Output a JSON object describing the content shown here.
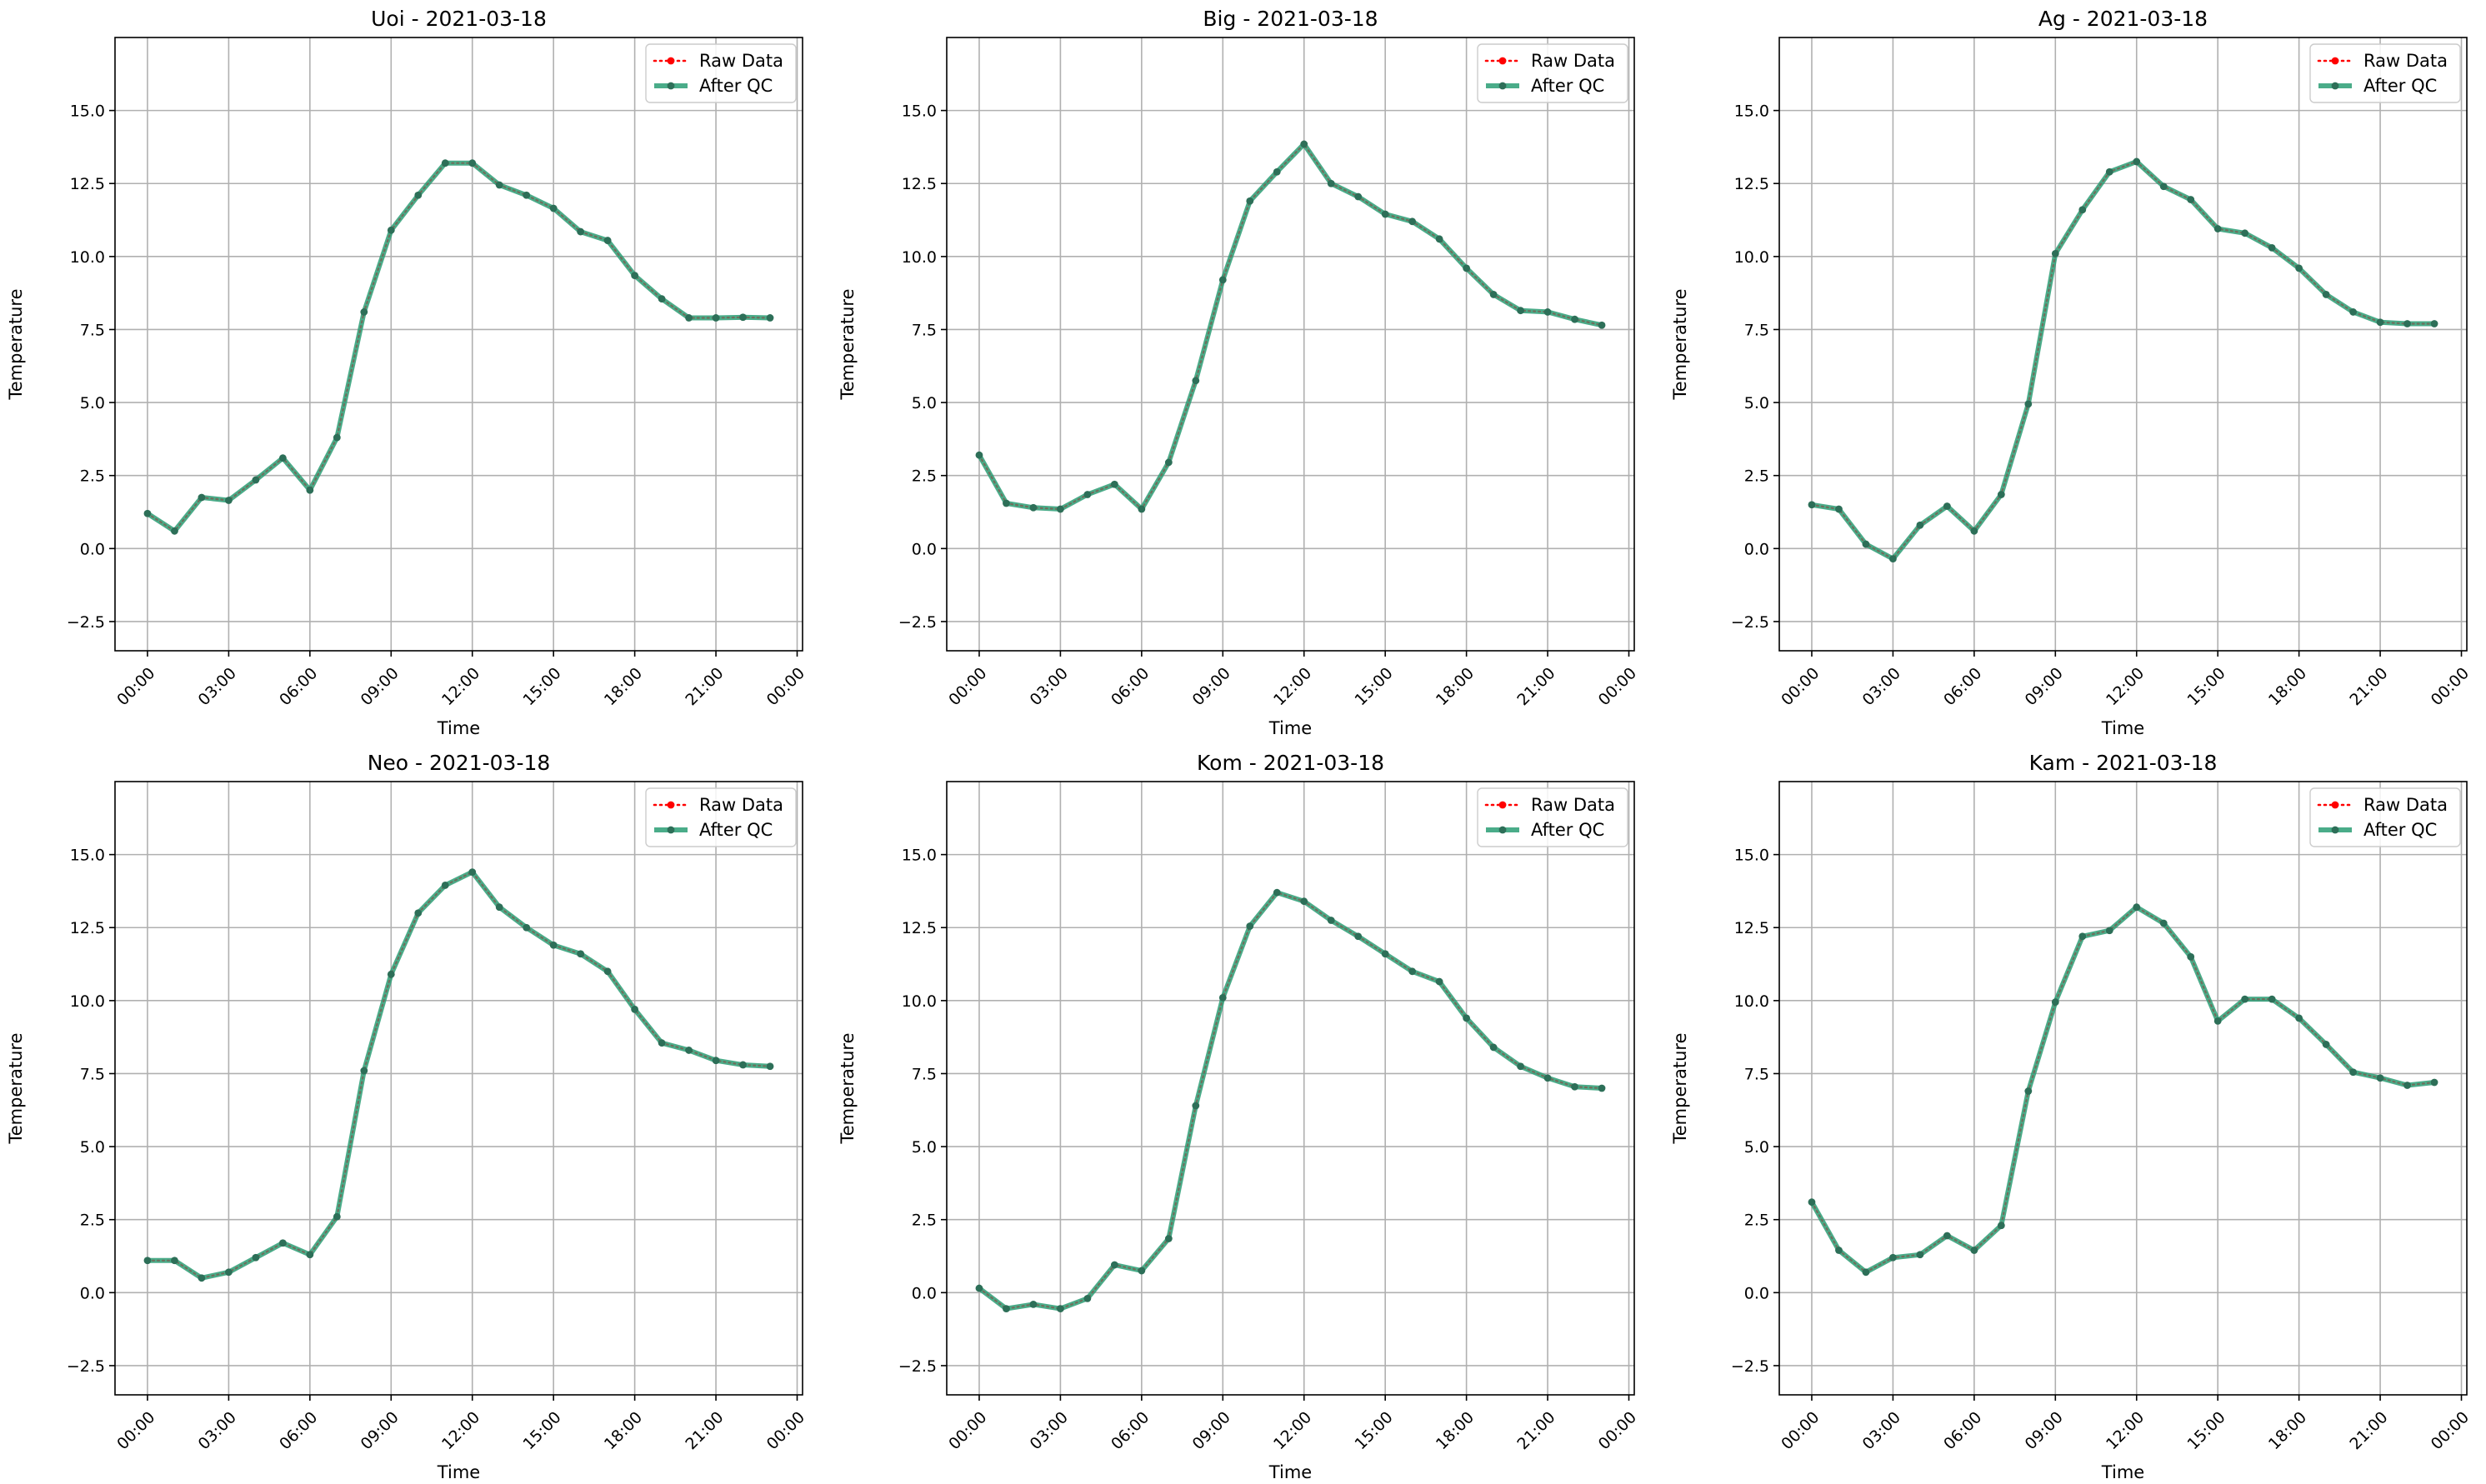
{
  "chart_data": [
    {
      "type": "line",
      "title": "Uoi - 2021-03-18",
      "xlabel": "Time",
      "ylabel": "Temperature",
      "xlim": [
        -1.2,
        24.2
      ],
      "ylim": [
        -3.5,
        17.5
      ],
      "xticks": [
        0,
        3,
        6,
        9,
        12,
        15,
        18,
        21,
        24
      ],
      "xticklabels": [
        "00:00",
        "03:00",
        "06:00",
        "09:00",
        "12:00",
        "15:00",
        "18:00",
        "21:00",
        "00:00"
      ],
      "yticks": [
        -2.5,
        0.0,
        2.5,
        5.0,
        7.5,
        10.0,
        12.5,
        15.0
      ],
      "yticklabels": [
        "−2.5",
        "0.0",
        "2.5",
        "5.0",
        "7.5",
        "10.0",
        "12.5",
        "15.0"
      ],
      "grid": true,
      "legend": "top-right",
      "x": [
        0,
        1,
        2,
        3,
        4,
        5,
        6,
        7,
        8,
        9,
        10,
        11,
        12,
        13,
        14,
        15,
        16,
        17,
        18,
        19,
        20,
        21,
        22,
        23
      ],
      "series": [
        {
          "name": "Raw Data",
          "color": "#ff0000",
          "values": [
            1.2,
            0.6,
            1.75,
            1.65,
            2.35,
            3.1,
            2.0,
            3.8,
            8.1,
            10.9,
            12.1,
            13.2,
            13.2,
            12.45,
            12.1,
            11.65,
            10.85,
            10.55,
            9.35,
            8.55,
            7.9,
            7.9,
            7.92,
            7.9
          ]
        },
        {
          "name": "After QC",
          "color": "#2a9d74",
          "values": [
            1.2,
            0.6,
            1.75,
            1.65,
            2.35,
            3.1,
            2.0,
            3.8,
            8.1,
            10.9,
            12.1,
            13.2,
            13.2,
            12.45,
            12.1,
            11.65,
            10.85,
            10.55,
            9.35,
            8.55,
            7.9,
            7.9,
            7.92,
            7.9
          ]
        }
      ]
    },
    {
      "type": "line",
      "title": "Big - 2021-03-18",
      "xlabel": "Time",
      "ylabel": "Temperature",
      "xlim": [
        -1.2,
        24.2
      ],
      "ylim": [
        -3.5,
        17.5
      ],
      "xticks": [
        0,
        3,
        6,
        9,
        12,
        15,
        18,
        21,
        24
      ],
      "xticklabels": [
        "00:00",
        "03:00",
        "06:00",
        "09:00",
        "12:00",
        "15:00",
        "18:00",
        "21:00",
        "00:00"
      ],
      "yticks": [
        -2.5,
        0.0,
        2.5,
        5.0,
        7.5,
        10.0,
        12.5,
        15.0
      ],
      "yticklabels": [
        "−2.5",
        "0.0",
        "2.5",
        "5.0",
        "7.5",
        "10.0",
        "12.5",
        "15.0"
      ],
      "grid": true,
      "legend": "top-right",
      "x": [
        0,
        1,
        2,
        3,
        4,
        5,
        6,
        7,
        8,
        9,
        10,
        11,
        12,
        13,
        14,
        15,
        16,
        17,
        18,
        19,
        20,
        21,
        22,
        23
      ],
      "series": [
        {
          "name": "Raw Data",
          "color": "#ff0000",
          "values": [
            3.2,
            1.55,
            1.4,
            1.35,
            1.85,
            2.2,
            1.35,
            2.95,
            5.75,
            9.2,
            11.9,
            12.9,
            13.85,
            12.5,
            12.05,
            11.45,
            11.2,
            10.6,
            9.6,
            8.7,
            8.15,
            8.1,
            7.85,
            7.65
          ]
        },
        {
          "name": "After QC",
          "color": "#2a9d74",
          "values": [
            3.2,
            1.55,
            1.4,
            1.35,
            1.85,
            2.2,
            1.35,
            2.95,
            5.75,
            9.2,
            11.9,
            12.9,
            13.85,
            12.5,
            12.05,
            11.45,
            11.2,
            10.6,
            9.6,
            8.7,
            8.15,
            8.1,
            7.85,
            7.65
          ]
        }
      ]
    },
    {
      "type": "line",
      "title": "Ag - 2021-03-18",
      "xlabel": "Time",
      "ylabel": "Temperature",
      "xlim": [
        -1.2,
        24.2
      ],
      "ylim": [
        -3.5,
        17.5
      ],
      "xticks": [
        0,
        3,
        6,
        9,
        12,
        15,
        18,
        21,
        24
      ],
      "xticklabels": [
        "00:00",
        "03:00",
        "06:00",
        "09:00",
        "12:00",
        "15:00",
        "18:00",
        "21:00",
        "00:00"
      ],
      "yticks": [
        -2.5,
        0.0,
        2.5,
        5.0,
        7.5,
        10.0,
        12.5,
        15.0
      ],
      "yticklabels": [
        "−2.5",
        "0.0",
        "2.5",
        "5.0",
        "7.5",
        "10.0",
        "12.5",
        "15.0"
      ],
      "grid": true,
      "legend": "top-right",
      "x": [
        0,
        1,
        2,
        3,
        4,
        5,
        6,
        7,
        8,
        9,
        10,
        11,
        12,
        13,
        14,
        15,
        16,
        17,
        18,
        19,
        20,
        21,
        22,
        23
      ],
      "series": [
        {
          "name": "Raw Data",
          "color": "#ff0000",
          "values": [
            1.5,
            1.35,
            0.15,
            -0.35,
            0.8,
            1.45,
            0.6,
            1.85,
            4.95,
            10.1,
            11.6,
            12.9,
            13.25,
            12.4,
            11.95,
            10.95,
            10.8,
            10.3,
            9.6,
            8.7,
            8.1,
            7.75,
            7.7,
            7.7
          ]
        },
        {
          "name": "After QC",
          "color": "#2a9d74",
          "values": [
            1.5,
            1.35,
            0.15,
            -0.35,
            0.8,
            1.45,
            0.6,
            1.85,
            4.95,
            10.1,
            11.6,
            12.9,
            13.25,
            12.4,
            11.95,
            10.95,
            10.8,
            10.3,
            9.6,
            8.7,
            8.1,
            7.75,
            7.7,
            7.7
          ]
        }
      ]
    },
    {
      "type": "line",
      "title": "Neo - 2021-03-18",
      "xlabel": "Time",
      "ylabel": "Temperature",
      "xlim": [
        -1.2,
        24.2
      ],
      "ylim": [
        -3.5,
        17.5
      ],
      "xticks": [
        0,
        3,
        6,
        9,
        12,
        15,
        18,
        21,
        24
      ],
      "xticklabels": [
        "00:00",
        "03:00",
        "06:00",
        "09:00",
        "12:00",
        "15:00",
        "18:00",
        "21:00",
        "00:00"
      ],
      "yticks": [
        -2.5,
        0.0,
        2.5,
        5.0,
        7.5,
        10.0,
        12.5,
        15.0
      ],
      "yticklabels": [
        "−2.5",
        "0.0",
        "2.5",
        "5.0",
        "7.5",
        "10.0",
        "12.5",
        "15.0"
      ],
      "grid": true,
      "legend": "top-right",
      "x": [
        0,
        1,
        2,
        3,
        4,
        5,
        6,
        7,
        8,
        9,
        10,
        11,
        12,
        13,
        14,
        15,
        16,
        17,
        18,
        19,
        20,
        21,
        22,
        23
      ],
      "series": [
        {
          "name": "Raw Data",
          "color": "#ff0000",
          "values": [
            1.1,
            1.1,
            0.5,
            0.7,
            1.2,
            1.7,
            1.3,
            2.6,
            7.6,
            10.9,
            13.0,
            13.95,
            14.4,
            13.2,
            12.5,
            11.9,
            11.6,
            11.0,
            9.7,
            8.55,
            8.3,
            7.95,
            7.8,
            7.75
          ]
        },
        {
          "name": "After QC",
          "color": "#2a9d74",
          "values": [
            1.1,
            1.1,
            0.5,
            0.7,
            1.2,
            1.7,
            1.3,
            2.6,
            7.6,
            10.9,
            13.0,
            13.95,
            14.4,
            13.2,
            12.5,
            11.9,
            11.6,
            11.0,
            9.7,
            8.55,
            8.3,
            7.95,
            7.8,
            7.75
          ]
        }
      ]
    },
    {
      "type": "line",
      "title": "Kom - 2021-03-18",
      "xlabel": "Time",
      "ylabel": "Temperature",
      "xlim": [
        -1.2,
        24.2
      ],
      "ylim": [
        -3.5,
        17.5
      ],
      "xticks": [
        0,
        3,
        6,
        9,
        12,
        15,
        18,
        21,
        24
      ],
      "xticklabels": [
        "00:00",
        "03:00",
        "06:00",
        "09:00",
        "12:00",
        "15:00",
        "18:00",
        "21:00",
        "00:00"
      ],
      "yticks": [
        -2.5,
        0.0,
        2.5,
        5.0,
        7.5,
        10.0,
        12.5,
        15.0
      ],
      "yticklabels": [
        "−2.5",
        "0.0",
        "2.5",
        "5.0",
        "7.5",
        "10.0",
        "12.5",
        "15.0"
      ],
      "grid": true,
      "legend": "top-right",
      "x": [
        0,
        1,
        2,
        3,
        4,
        5,
        6,
        7,
        8,
        9,
        10,
        11,
        12,
        13,
        14,
        15,
        16,
        17,
        18,
        19,
        20,
        21,
        22,
        23
      ],
      "series": [
        {
          "name": "Raw Data",
          "color": "#ff0000",
          "values": [
            0.15,
            -0.55,
            -0.4,
            -0.55,
            -0.2,
            0.95,
            0.75,
            1.85,
            6.4,
            10.1,
            12.55,
            13.7,
            13.4,
            12.75,
            12.2,
            11.6,
            11.0,
            10.65,
            9.4,
            8.4,
            7.75,
            7.35,
            7.05,
            7.0
          ]
        },
        {
          "name": "After QC",
          "color": "#2a9d74",
          "values": [
            0.15,
            -0.55,
            -0.4,
            -0.55,
            -0.2,
            0.95,
            0.75,
            1.85,
            6.4,
            10.1,
            12.55,
            13.7,
            13.4,
            12.75,
            12.2,
            11.6,
            11.0,
            10.65,
            9.4,
            8.4,
            7.75,
            7.35,
            7.05,
            7.0
          ]
        }
      ]
    },
    {
      "type": "line",
      "title": "Kam - 2021-03-18",
      "xlabel": "Time",
      "ylabel": "Temperature",
      "xlim": [
        -1.2,
        24.2
      ],
      "ylim": [
        -3.5,
        17.5
      ],
      "xticks": [
        0,
        3,
        6,
        9,
        12,
        15,
        18,
        21,
        24
      ],
      "xticklabels": [
        "00:00",
        "03:00",
        "06:00",
        "09:00",
        "12:00",
        "15:00",
        "18:00",
        "21:00",
        "00:00"
      ],
      "yticks": [
        -2.5,
        0.0,
        2.5,
        5.0,
        7.5,
        10.0,
        12.5,
        15.0
      ],
      "yticklabels": [
        "−2.5",
        "0.0",
        "2.5",
        "5.0",
        "7.5",
        "10.0",
        "12.5",
        "15.0"
      ],
      "grid": true,
      "legend": "top-right",
      "x": [
        0,
        1,
        2,
        3,
        4,
        5,
        6,
        7,
        8,
        9,
        10,
        11,
        12,
        13,
        14,
        15,
        16,
        17,
        18,
        19,
        20,
        21,
        22,
        23
      ],
      "series": [
        {
          "name": "Raw Data",
          "color": "#ff0000",
          "values": [
            3.1,
            1.45,
            0.7,
            1.2,
            1.3,
            1.95,
            1.45,
            2.3,
            6.9,
            9.95,
            12.2,
            12.4,
            13.2,
            12.65,
            11.5,
            9.3,
            10.05,
            10.05,
            9.4,
            8.5,
            7.55,
            7.35,
            7.1,
            7.2
          ]
        },
        {
          "name": "After QC",
          "color": "#2a9d74",
          "values": [
            3.1,
            1.45,
            0.7,
            1.2,
            1.3,
            1.95,
            1.45,
            2.3,
            6.9,
            9.95,
            12.2,
            12.4,
            13.2,
            12.65,
            11.5,
            9.3,
            10.05,
            10.05,
            9.4,
            8.5,
            7.55,
            7.35,
            7.1,
            7.2
          ]
        }
      ]
    }
  ]
}
